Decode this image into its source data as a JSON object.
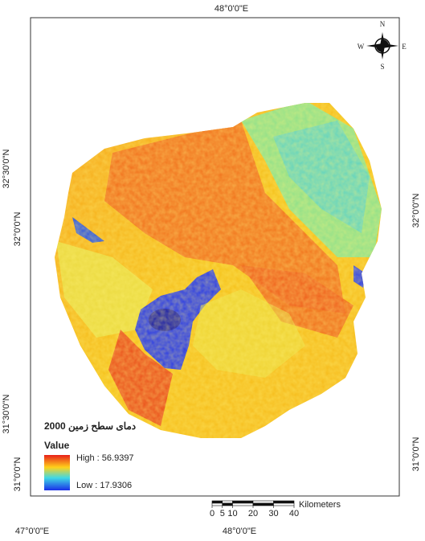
{
  "graticule": {
    "top": [
      "48°0'0\"E"
    ],
    "bottom": [
      "47°0'0\"E",
      "48°0'0\"E"
    ],
    "left": [
      "32°30'0\"N",
      "32°0'0\"N",
      "31°30'0\"N",
      "31°0'0\"N"
    ],
    "right": [
      "32°0'0\"N",
      "31°0'0\"N"
    ]
  },
  "compass": {
    "n": "N",
    "s": "S",
    "w": "W",
    "e": "E"
  },
  "legend": {
    "title": "دمای سطح زمین 2000",
    "heading": "Value",
    "high": "High : 56.9397",
    "low": "Low : 17.9306"
  },
  "scale_bar": {
    "ticks": [
      0,
      5,
      10,
      20,
      30,
      40
    ],
    "unit": "Kilometers"
  }
}
